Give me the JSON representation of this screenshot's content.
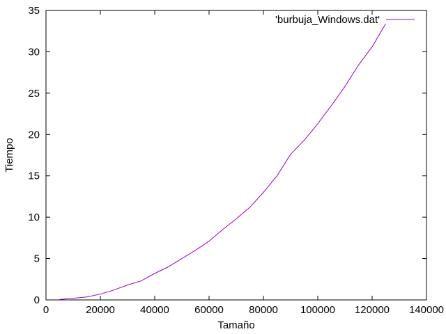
{
  "chart_data": {
    "type": "line",
    "xlabel": "Tamaño",
    "ylabel": "Tiempo",
    "xlim": [
      0,
      140000
    ],
    "ylim": [
      0,
      35
    ],
    "x_ticks": [
      0,
      20000,
      40000,
      60000,
      80000,
      100000,
      120000,
      140000
    ],
    "x_tick_labels": [
      "0",
      "20000",
      "40000",
      "60000",
      "80000",
      "100000",
      "120000",
      "140000"
    ],
    "y_ticks": [
      0,
      5,
      10,
      15,
      20,
      25,
      30,
      35
    ],
    "y_tick_labels": [
      "0",
      "5",
      "10",
      "15",
      "20",
      "25",
      "30",
      "35"
    ],
    "grid": false,
    "legend_position": "top-right",
    "series": [
      {
        "name": "'burbuja_Windows.dat'",
        "color": "#9400d3",
        "x": [
          5000,
          10000,
          15000,
          20000,
          25000,
          30000,
          35000,
          40000,
          45000,
          50000,
          55000,
          60000,
          65000,
          70000,
          75000,
          80000,
          85000,
          90000,
          95000,
          100000,
          105000,
          110000,
          115000,
          120000,
          125000
        ],
        "y": [
          0.05,
          0.2,
          0.35,
          0.7,
          1.2,
          1.8,
          2.3,
          3.2,
          4.0,
          5.0,
          6.0,
          7.1,
          8.5,
          9.8,
          11.2,
          13.0,
          15.0,
          17.6,
          19.3,
          21.3,
          23.5,
          25.8,
          28.4,
          30.6,
          33.4
        ]
      }
    ]
  }
}
